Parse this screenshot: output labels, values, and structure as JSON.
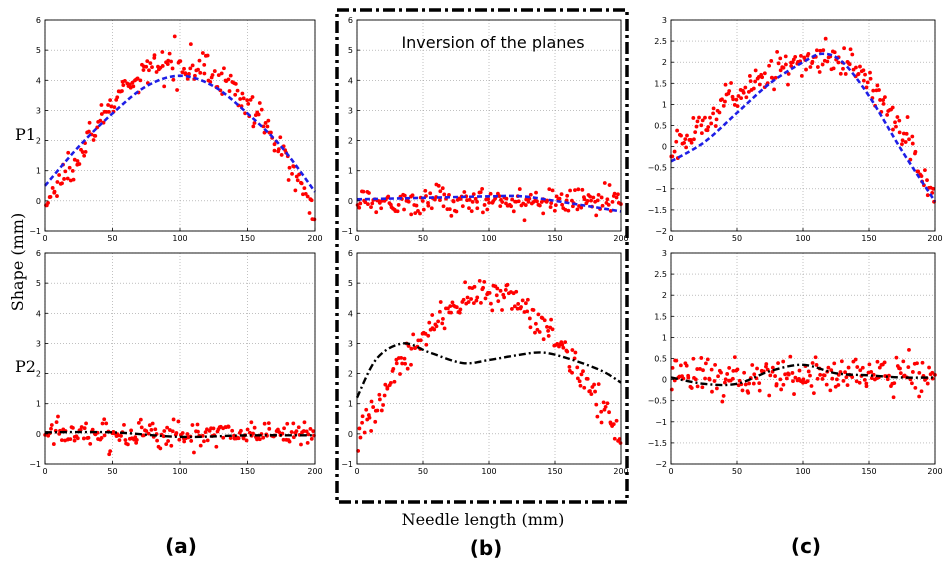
{
  "figure": {
    "ylabel": "Shape (mm)",
    "xlabel": "Needle length (mm)",
    "row_labels": [
      "P1",
      "P2"
    ],
    "panel_labels": [
      "(a)",
      "(b)",
      "(c)"
    ],
    "annotation": "Inversion of the planes",
    "colors": {
      "measured": "#ff0000",
      "fit_blue": "#1f1fe6",
      "fit_black": "#000000",
      "frame": "#000000"
    }
  },
  "chart_data": [
    {
      "type": "scatter",
      "panel": "(a)",
      "row": "P1",
      "xlim": [
        0,
        200
      ],
      "ylim": [
        -1,
        6
      ],
      "xticks": [
        0,
        50,
        100,
        150,
        200
      ],
      "yticks": [
        -1,
        0,
        1,
        2,
        3,
        4,
        5,
        6
      ],
      "grid": true,
      "measured": {
        "kind": "dome",
        "peak": 4.6,
        "x_peak": 100,
        "start": -0.2,
        "end": -0.2,
        "noise": 0.35
      },
      "fit": {
        "color": "blue",
        "style": "dashed",
        "x": [
          0,
          25,
          50,
          75,
          100,
          125,
          150,
          175,
          200
        ],
        "y": [
          0.5,
          1.8,
          2.9,
          3.8,
          4.15,
          3.8,
          2.9,
          1.8,
          0.3
        ]
      }
    },
    {
      "type": "scatter",
      "panel": "(a)",
      "row": "P2",
      "xlim": [
        0,
        200
      ],
      "ylim": [
        -1,
        6
      ],
      "xticks": [
        0,
        50,
        100,
        150,
        200
      ],
      "yticks": [
        -1,
        0,
        1,
        2,
        3,
        4,
        5,
        6
      ],
      "grid": true,
      "measured": {
        "kind": "flat",
        "level": 0.0,
        "noise": 0.3
      },
      "fit": {
        "color": "black",
        "style": "dashdot",
        "x": [
          0,
          50,
          100,
          150,
          200
        ],
        "y": [
          0.05,
          0.05,
          -0.1,
          -0.05,
          -0.05
        ]
      }
    },
    {
      "type": "scatter",
      "panel": "(b)",
      "row": "P1",
      "xlim": [
        0,
        200
      ],
      "ylim": [
        -1,
        6
      ],
      "xticks": [
        0,
        50,
        100,
        150,
        200
      ],
      "yticks": [
        -1,
        0,
        1,
        2,
        3,
        4,
        5,
        6
      ],
      "grid": true,
      "measured": {
        "kind": "flat",
        "level": 0.0,
        "noise": 0.3
      },
      "fit": {
        "color": "blue",
        "style": "dashed",
        "x": [
          0,
          50,
          100,
          125,
          150,
          200
        ],
        "y": [
          0.05,
          0.1,
          0.15,
          0.15,
          0.0,
          -0.35
        ]
      }
    },
    {
      "type": "scatter",
      "panel": "(b)",
      "row": "P2",
      "xlim": [
        0,
        200
      ],
      "ylim": [
        -1,
        6
      ],
      "xticks": [
        0,
        50,
        100,
        150,
        200
      ],
      "yticks": [
        -1,
        0,
        1,
        2,
        3,
        4,
        5,
        6
      ],
      "grid": true,
      "measured": {
        "kind": "dome",
        "peak": 4.6,
        "x_peak": 100,
        "start": -0.2,
        "end": -0.2,
        "noise": 0.35
      },
      "fit": {
        "color": "black",
        "style": "dashdot",
        "x": [
          0,
          15,
          35,
          55,
          80,
          100,
          120,
          140,
          160,
          185,
          200
        ],
        "y": [
          1.2,
          2.5,
          3.0,
          2.7,
          2.35,
          2.45,
          2.6,
          2.7,
          2.5,
          2.1,
          1.7
        ]
      }
    },
    {
      "type": "scatter",
      "panel": "(c)",
      "row": "P1",
      "xlim": [
        0,
        200
      ],
      "ylim": [
        -2,
        3
      ],
      "xticks": [
        0,
        50,
        100,
        150,
        200
      ],
      "yticks": [
        -2,
        -1.5,
        -1,
        -0.5,
        0,
        0.5,
        1,
        1.5,
        2,
        2.5,
        3
      ],
      "grid": true,
      "measured": {
        "kind": "rise_fall",
        "start": -0.1,
        "peak": 2.15,
        "x_peak": 125,
        "end": -1.3,
        "noise": 0.25
      },
      "fit": {
        "color": "blue",
        "style": "dashed",
        "x": [
          0,
          25,
          50,
          75,
          100,
          115,
          130,
          150,
          175,
          200
        ],
        "y": [
          -0.35,
          0.1,
          0.8,
          1.5,
          2.0,
          2.2,
          2.0,
          1.2,
          -0.1,
          -1.3
        ]
      }
    },
    {
      "type": "scatter",
      "panel": "(c)",
      "row": "P2",
      "xlim": [
        0,
        200
      ],
      "ylim": [
        -2,
        3
      ],
      "xticks": [
        0,
        50,
        100,
        150,
        200
      ],
      "yticks": [
        -2,
        -1.5,
        -1,
        -0.5,
        0,
        0.5,
        1,
        1.5,
        2,
        2.5,
        3
      ],
      "grid": true,
      "measured": {
        "kind": "flat",
        "level": 0.1,
        "noise": 0.3
      },
      "fit": {
        "color": "black",
        "style": "dashdot",
        "x": [
          0,
          25,
          50,
          75,
          100,
          125,
          150,
          175,
          200
        ],
        "y": [
          0.05,
          -0.1,
          -0.1,
          0.2,
          0.35,
          0.15,
          0.1,
          0.05,
          0.05
        ]
      }
    }
  ]
}
